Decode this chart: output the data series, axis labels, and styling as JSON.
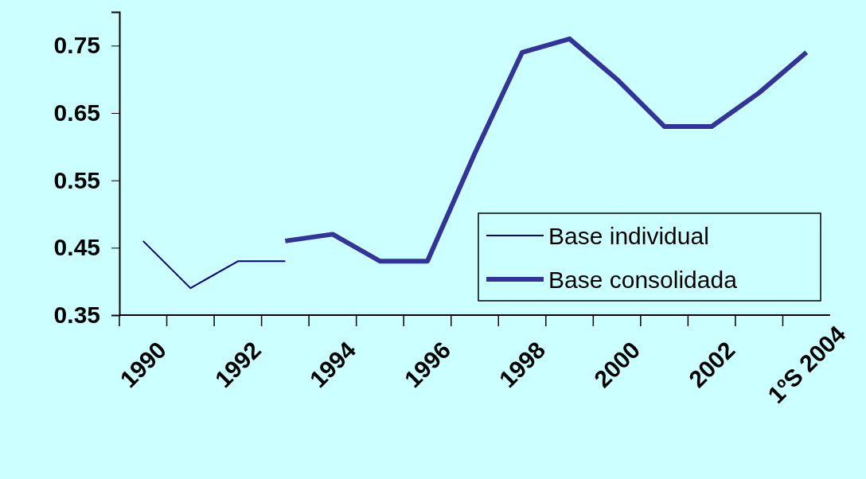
{
  "chart_data": {
    "type": "line",
    "categories": [
      "1990",
      null,
      "1992",
      null,
      "1994",
      null,
      "1996",
      null,
      "1998",
      null,
      "2000",
      null,
      "2002",
      null,
      "1ºS 2004"
    ],
    "series": [
      {
        "name": "Base individual",
        "color": "#000080",
        "values": [
          0.46,
          0.39,
          0.43,
          0.43,
          null,
          null,
          null,
          null,
          null,
          null,
          null,
          null,
          null,
          null,
          null
        ]
      },
      {
        "name": "Base consolidada",
        "color": "#333399",
        "values": [
          null,
          null,
          null,
          0.46,
          0.47,
          0.43,
          0.43,
          0.59,
          0.74,
          0.76,
          0.7,
          0.63,
          0.63,
          0.68,
          0.74
        ]
      }
    ],
    "ylim": [
      0.35,
      0.8
    ],
    "yticks": [
      0.35,
      0.45,
      0.55,
      0.65,
      0.75
    ],
    "grid": false,
    "legend": "bottom right",
    "marker": "none",
    "line_style": "solid"
  }
}
